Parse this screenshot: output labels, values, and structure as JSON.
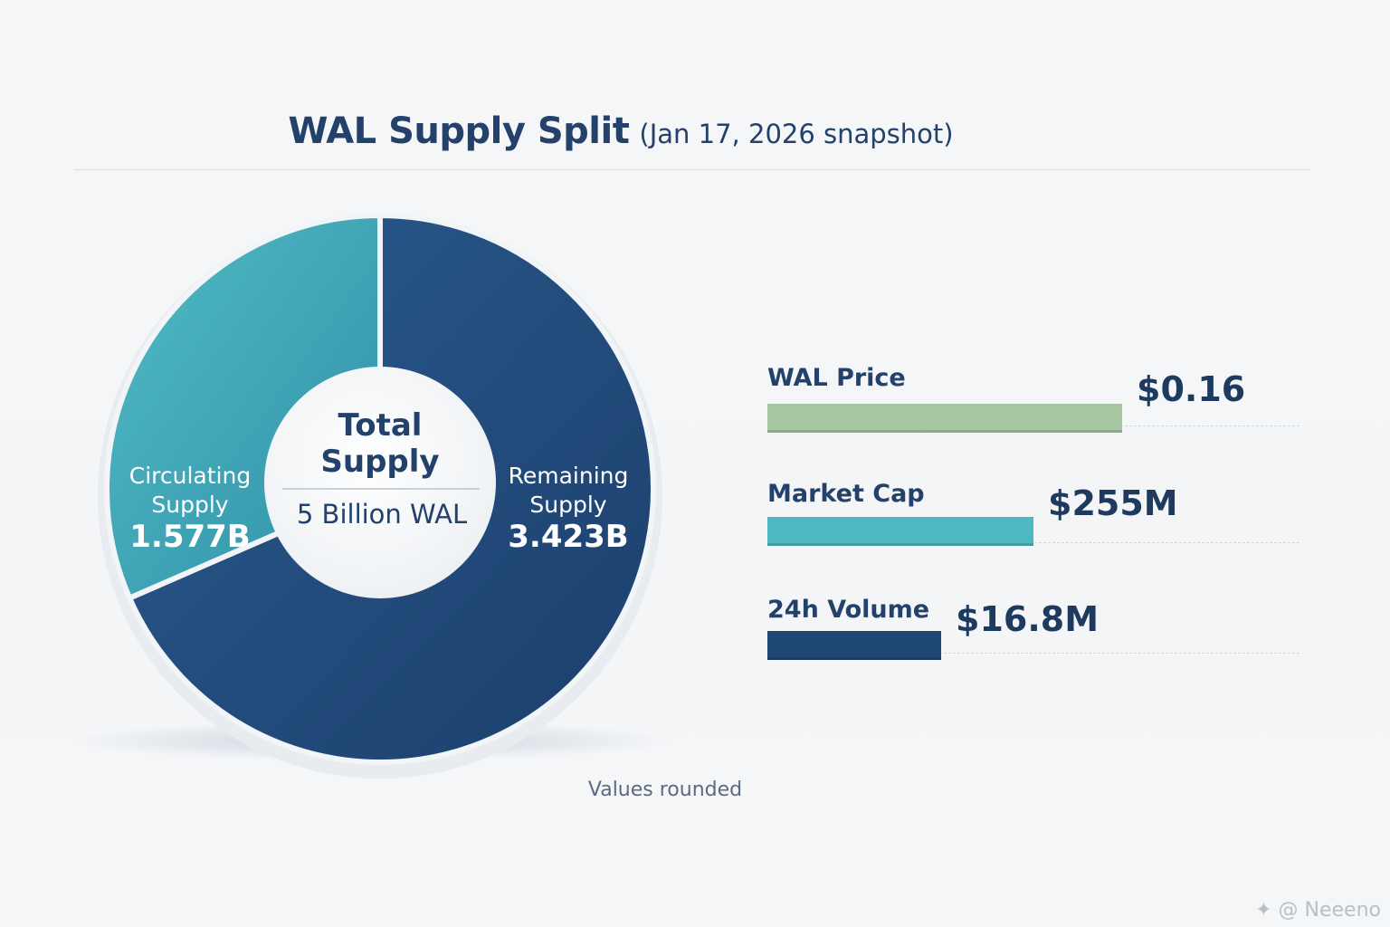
{
  "title": {
    "main": "WAL Supply Split",
    "sub": "(Jan 17, 2026 snapshot)"
  },
  "chart_data": [
    {
      "type": "pie",
      "style": "donut",
      "center": {
        "title_lines": [
          "Total",
          "Supply"
        ],
        "subtitle": "5 Billion WAL"
      },
      "total": 5.0,
      "unit": "B WAL",
      "slices": [
        {
          "label_lines": [
            "Circulating",
            "Supply"
          ],
          "value": 1.577,
          "value_label": "1.577B",
          "color": "#3a9fb2"
        },
        {
          "label_lines": [
            "Remaining",
            "Supply"
          ],
          "value": 3.423,
          "value_label": "3.423B",
          "color": "#21497a"
        }
      ]
    },
    {
      "type": "bar",
      "orientation": "horizontal",
      "categories": [
        "WAL Price",
        "Market Cap",
        "24h Volume"
      ],
      "value_labels": [
        "$0.16",
        "$255M",
        "$16.8M"
      ],
      "bar_fill_fraction": [
        1.0,
        0.75,
        0.49
      ],
      "colors": [
        "#a7c7a2",
        "#4db8bf",
        "#1f4775"
      ]
    }
  ],
  "footnote": "Values rounded",
  "watermark": "✦ @ Neeeno",
  "colors": {
    "circulating": "#3a9fb2",
    "remaining": "#21497a",
    "price_bar": "#a7c7a2",
    "market_cap_bar": "#4db8bf",
    "volume_bar": "#1f4775",
    "text": "#23416a"
  }
}
